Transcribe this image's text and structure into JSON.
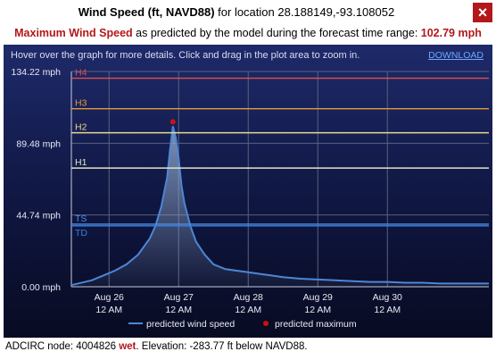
{
  "header": {
    "title_bold": "Wind Speed (ft, NAVD88)",
    "title_rest": " for location 28.188149,-93.108052",
    "close_label": "×"
  },
  "subtitle": {
    "label_bold": "Maximum Wind Speed",
    "text": " as predicted by the model during the forecast time range: ",
    "value": "102.79 mph"
  },
  "chart_header": {
    "hint": "Hover over the graph for more details. Click and drag in the plot area to zoom in.",
    "download_label": "DOWNLOAD"
  },
  "colors": {
    "line": "#4d86d6",
    "fill_top": "#8ea6c8",
    "max_marker": "#cc1111",
    "grid": "#59617f",
    "H4": "#d9534f",
    "H3": "#e39a3c",
    "H2": "#e6da8e",
    "H1": "#e4e4c8",
    "TS": "#4d8fe0",
    "TD": "#3a7fe0"
  },
  "chart_data": {
    "type": "area",
    "title": "",
    "xlabel": "",
    "ylabel": "",
    "ylim": [
      0,
      134.22
    ],
    "xlim_hours": [
      -13,
      131
    ],
    "y_ticks": [
      "0.00 mph",
      "44.74 mph",
      "89.48 mph",
      "134.22 mph"
    ],
    "y_tick_values": [
      0,
      44.74,
      89.48,
      134.22
    ],
    "x_ticks": [
      {
        "line1": "Aug 26",
        "line2": "12 AM",
        "hour": 0
      },
      {
        "line1": "Aug 27",
        "line2": "12 AM",
        "hour": 24
      },
      {
        "line1": "Aug 28",
        "line2": "12 AM",
        "hour": 48
      },
      {
        "line1": "Aug 29",
        "line2": "12 AM",
        "hour": 72
      },
      {
        "line1": "Aug 30",
        "line2": "12 AM",
        "hour": 96
      }
    ],
    "thresholds": [
      {
        "name": "H4",
        "value": 130
      },
      {
        "name": "H3",
        "value": 111
      },
      {
        "name": "H2",
        "value": 96
      },
      {
        "name": "H1",
        "value": 74
      },
      {
        "name": "TS",
        "value": 39
      },
      {
        "name": "TD",
        "value": 38
      }
    ],
    "series": [
      {
        "name": "predicted wind speed",
        "x": [
          -13,
          -6,
          -2,
          2,
          6,
          10,
          14,
          16,
          18,
          20,
          21,
          22,
          23,
          24,
          25,
          26,
          28,
          30,
          33,
          36,
          40,
          44,
          48,
          52,
          56,
          60,
          66,
          72,
          78,
          84,
          90,
          96,
          102,
          108,
          114,
          120,
          126,
          131
        ],
        "y": [
          1,
          4,
          7,
          10,
          14,
          20,
          30,
          38,
          50,
          68,
          85,
          100,
          93,
          80,
          63,
          52,
          38,
          28,
          20,
          14,
          11,
          10,
          9,
          8,
          7,
          6,
          5,
          4.5,
          4,
          3.5,
          3,
          3,
          2.5,
          2.5,
          2,
          2,
          2,
          2
        ]
      }
    ],
    "maximum": {
      "name": "predicted maximum",
      "x": 22,
      "y": 102.79
    },
    "legend": "bottom-center"
  },
  "footer": {
    "prefix": "ADCIRC node: 4004826 ",
    "status": "wet",
    "suffix": ". Elevation: -283.77 ft below NAVD88."
  }
}
